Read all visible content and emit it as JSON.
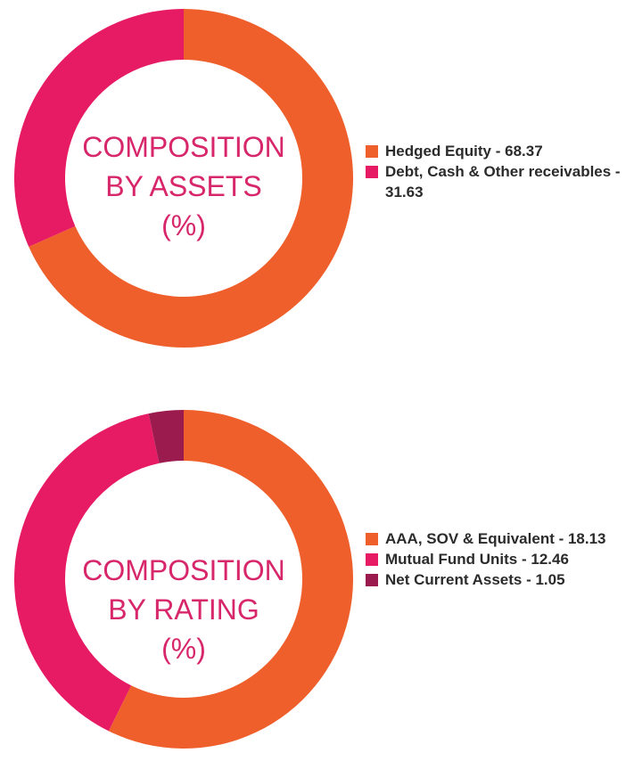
{
  "colors": {
    "orange": "#ef5f2c",
    "pink": "#e71a64",
    "maroon": "#9c1b4f",
    "center_text": "#d7266a"
  },
  "chart_data": [
    {
      "type": "pie",
      "variant": "donut",
      "center_label": [
        "COMPOSITION",
        "BY ASSETS",
        "(%)"
      ],
      "categories": [
        "Hedged Equity",
        "Debt, Cash & Other receivables"
      ],
      "values": [
        68.37,
        31.63
      ],
      "colors": [
        "#ef5f2c",
        "#e71a64"
      ],
      "legend_placement": "right",
      "legend_labels": [
        "Hedged Equity - 68.37",
        "Debt, Cash & Other receivables - 31.63"
      ]
    },
    {
      "type": "pie",
      "variant": "donut",
      "center_label": [
        "COMPOSITION",
        "BY RATING",
        "(%)"
      ],
      "categories": [
        "AAA, SOV & Equivalent",
        "Mutual Fund Units",
        "Net Current Assets"
      ],
      "values": [
        18.13,
        12.46,
        1.05
      ],
      "colors": [
        "#ef5f2c",
        "#e71a64",
        "#9c1b4f"
      ],
      "legend_placement": "right",
      "legend_labels": [
        "AAA, SOV & Equivalent - 18.13",
        "Mutual Fund Units - 12.46",
        "Net Current Assets - 1.05"
      ]
    }
  ]
}
